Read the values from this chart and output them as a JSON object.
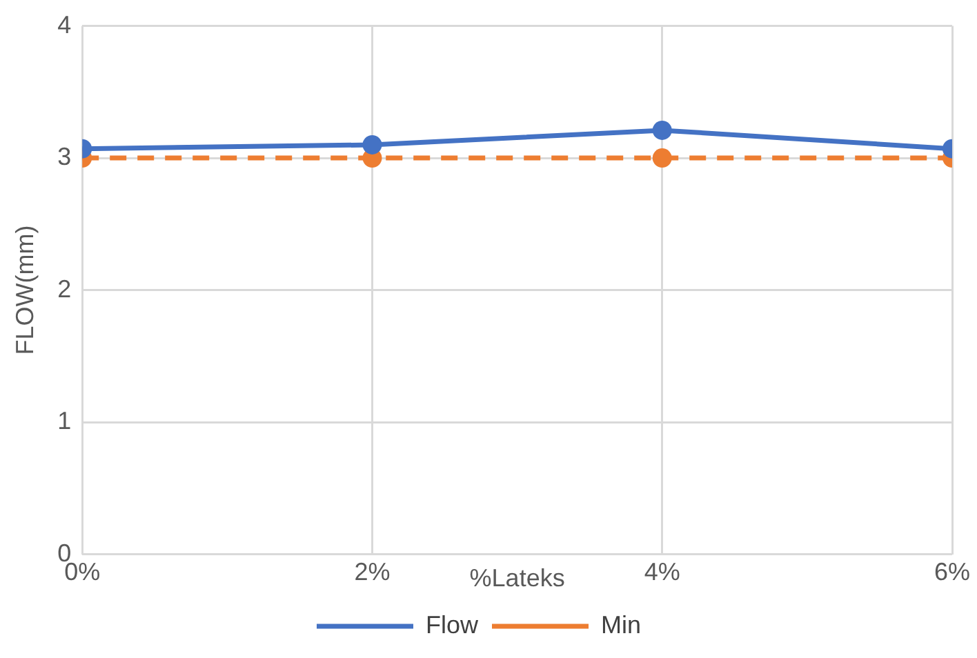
{
  "chart_data": {
    "type": "line",
    "xlabel": "%Lateks",
    "ylabel": "FLOW(mm)",
    "x": [
      0,
      2,
      4,
      6
    ],
    "xlim": [
      0,
      6
    ],
    "xticks": [
      {
        "value": 0,
        "label": "0%"
      },
      {
        "value": 2,
        "label": "2%"
      },
      {
        "value": 4,
        "label": "4%"
      },
      {
        "value": 6,
        "label": "6%"
      }
    ],
    "ylim": [
      0,
      4
    ],
    "yticks": [
      0,
      1,
      2,
      3,
      4
    ],
    "series": [
      {
        "name": "Flow",
        "color": "#4472c4",
        "values": [
          3.07,
          3.1,
          3.21,
          3.07
        ],
        "line_style": "solid"
      },
      {
        "name": "Min",
        "color": "#ed7d31",
        "values": [
          3,
          3,
          3,
          3
        ],
        "line_style": "dashed"
      }
    ],
    "marker": "circle",
    "grid": true,
    "legend": "bottom"
  }
}
